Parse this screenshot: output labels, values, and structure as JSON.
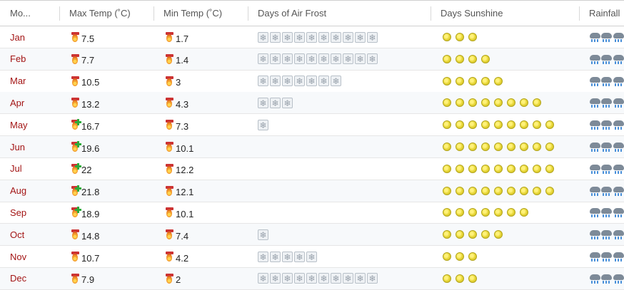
{
  "headers": {
    "month": "Mo...",
    "max_temp": "Max Temp (˚C)",
    "min_temp": "Min Temp (˚C)",
    "frost": "Days of Air Frost",
    "sunshine": "Days Sunshine",
    "rainfall": "Rainfall"
  },
  "rows": [
    {
      "month": "Jan",
      "max": "7.5",
      "max_plus": false,
      "min": "1.7",
      "frost": 10,
      "sun": 3,
      "rain": 3
    },
    {
      "month": "Feb",
      "max": "7.7",
      "max_plus": false,
      "min": "1.4",
      "frost": 10,
      "sun": 4,
      "rain": 3
    },
    {
      "month": "Mar",
      "max": "10.5",
      "max_plus": false,
      "min": "3",
      "frost": 7,
      "sun": 5,
      "rain": 3
    },
    {
      "month": "Apr",
      "max": "13.2",
      "max_plus": false,
      "min": "4.3",
      "frost": 3,
      "sun": 8,
      "rain": 3
    },
    {
      "month": "May",
      "max": "16.7",
      "max_plus": true,
      "min": "7.3",
      "frost": 1,
      "sun": 9,
      "rain": 3
    },
    {
      "month": "Jun",
      "max": "19.6",
      "max_plus": true,
      "min": "10.1",
      "frost": 0,
      "sun": 9,
      "rain": 3
    },
    {
      "month": "Jul",
      "max": "22",
      "max_plus": true,
      "min": "12.2",
      "frost": 0,
      "sun": 9,
      "rain": 3
    },
    {
      "month": "Aug",
      "max": "21.8",
      "max_plus": true,
      "min": "12.1",
      "frost": 0,
      "sun": 9,
      "rain": 3
    },
    {
      "month": "Sep",
      "max": "18.9",
      "max_plus": true,
      "min": "10.1",
      "frost": 0,
      "sun": 7,
      "rain": 3
    },
    {
      "month": "Oct",
      "max": "14.8",
      "max_plus": false,
      "min": "7.4",
      "frost": 1,
      "sun": 5,
      "rain": 3
    },
    {
      "month": "Nov",
      "max": "10.7",
      "max_plus": false,
      "min": "4.2",
      "frost": 5,
      "sun": 3,
      "rain": 3
    },
    {
      "month": "Dec",
      "max": "7.9",
      "max_plus": false,
      "min": "2",
      "frost": 10,
      "sun": 3,
      "rain": 3
    }
  ],
  "icons": {
    "temp": "thermometer-flame-icon",
    "temp_high": "thermometer-plus-icon",
    "frost": "snowflake-icon",
    "sun": "sun-icon",
    "rain": "rain-cloud-icon"
  },
  "colors": {
    "month_text": "#a31515",
    "sun": "#e9d83a",
    "plus": "#2cab3a"
  }
}
